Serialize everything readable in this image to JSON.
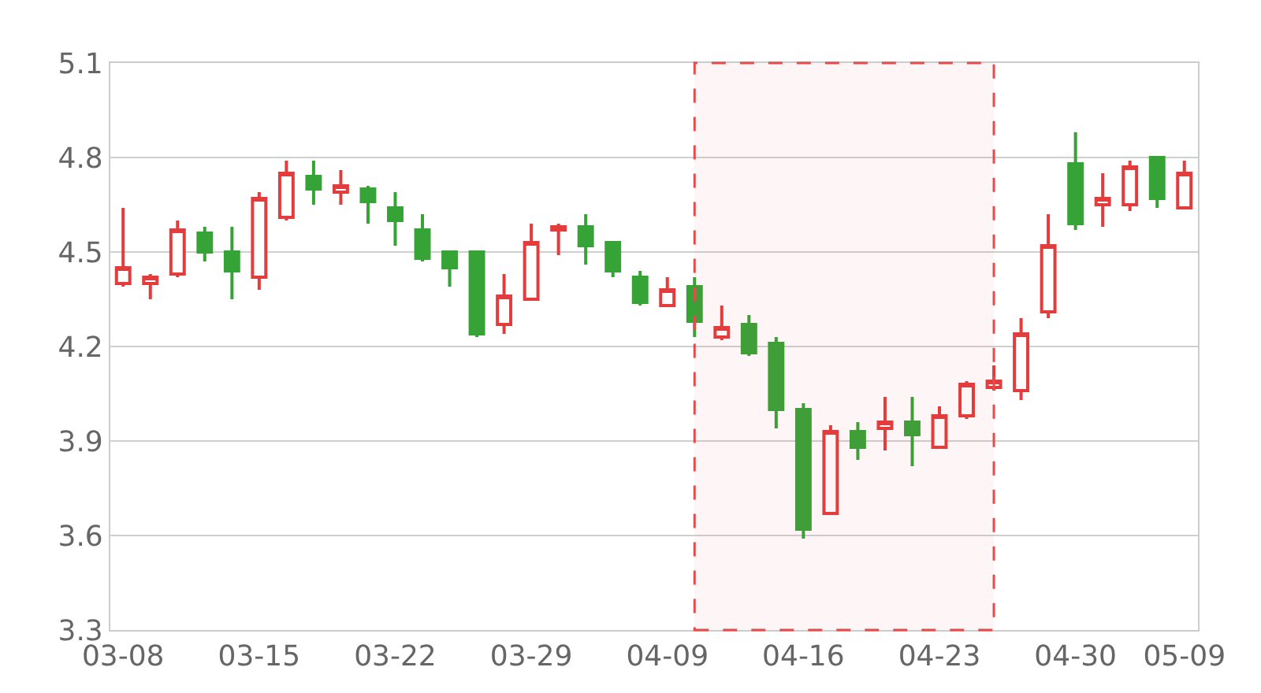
{
  "chart_data": {
    "type": "candlestick",
    "categories": [
      "03-08",
      null,
      null,
      null,
      null,
      "03-15",
      null,
      null,
      null,
      null,
      "03-22",
      null,
      null,
      null,
      null,
      "03-29",
      null,
      null,
      null,
      null,
      "04-09",
      null,
      null,
      null,
      null,
      "04-16",
      null,
      null,
      null,
      null,
      "04-23",
      null,
      null,
      null,
      null,
      "04-30",
      null,
      null,
      null,
      "05-09"
    ],
    "ohlc": [
      [
        4.4,
        4.64,
        4.39,
        4.45
      ],
      [
        4.4,
        4.43,
        4.35,
        4.42
      ],
      [
        4.43,
        4.6,
        4.42,
        4.57
      ],
      [
        4.56,
        4.58,
        4.47,
        4.5
      ],
      [
        4.5,
        4.58,
        4.35,
        4.44
      ],
      [
        4.42,
        4.69,
        4.38,
        4.67
      ],
      [
        4.61,
        4.79,
        4.6,
        4.75
      ],
      [
        4.74,
        4.79,
        4.65,
        4.7
      ],
      [
        4.69,
        4.76,
        4.65,
        4.71
      ],
      [
        4.7,
        4.71,
        4.59,
        4.66
      ],
      [
        4.64,
        4.69,
        4.52,
        4.6
      ],
      [
        4.57,
        4.62,
        4.47,
        4.48
      ],
      [
        4.5,
        4.5,
        4.39,
        4.45
      ],
      [
        4.5,
        4.5,
        4.23,
        4.24
      ],
      [
        4.27,
        4.43,
        4.24,
        4.36
      ],
      [
        4.35,
        4.59,
        4.35,
        4.53
      ],
      [
        4.57,
        4.59,
        4.49,
        4.58
      ],
      [
        4.58,
        4.62,
        4.46,
        4.52
      ],
      [
        4.53,
        4.53,
        4.42,
        4.44
      ],
      [
        4.42,
        4.44,
        4.33,
        4.34
      ],
      [
        4.33,
        4.42,
        4.33,
        4.38
      ],
      [
        4.39,
        4.42,
        4.23,
        4.28
      ],
      [
        4.23,
        4.33,
        4.22,
        4.26
      ],
      [
        4.27,
        4.3,
        4.17,
        4.18
      ],
      [
        4.21,
        4.23,
        3.94,
        4.0
      ],
      [
        4.0,
        4.02,
        3.59,
        3.62
      ],
      [
        3.67,
        3.95,
        3.67,
        3.93
      ],
      [
        3.93,
        3.96,
        3.84,
        3.88
      ],
      [
        3.94,
        4.04,
        3.87,
        3.96
      ],
      [
        3.96,
        4.04,
        3.82,
        3.92
      ],
      [
        3.88,
        4.01,
        3.88,
        3.98
      ],
      [
        3.98,
        4.09,
        3.97,
        4.08
      ],
      [
        4.07,
        4.14,
        4.06,
        4.09
      ],
      [
        4.06,
        4.29,
        4.03,
        4.24
      ],
      [
        4.31,
        4.62,
        4.29,
        4.52
      ],
      [
        4.78,
        4.88,
        4.57,
        4.59
      ],
      [
        4.65,
        4.75,
        4.58,
        4.67
      ],
      [
        4.65,
        4.79,
        4.63,
        4.77
      ],
      [
        4.8,
        4.8,
        4.64,
        4.67
      ],
      [
        4.64,
        4.79,
        4.64,
        4.75
      ]
    ],
    "colors": [
      "#e23c3c",
      "#e23c3c",
      "#e23c3c",
      "#36a336",
      "#36a336",
      "#e23c3c",
      "#e23c3c",
      "#36a336",
      "#e23c3c",
      "#36a336",
      "#36a336",
      "#36a336",
      "#36a336",
      "#36a336",
      "#e23c3c",
      "#e23c3c",
      "#e23c3c",
      "#36a336",
      "#36a336",
      "#36a336",
      "#e23c3c",
      "#36a336",
      "#e23c3c",
      "#36a336",
      "#36a336",
      "#36a336",
      "#e23c3c",
      "#36a336",
      "#e23c3c",
      "#36a336",
      "#e23c3c",
      "#e23c3c",
      "#e23c3c",
      "#e23c3c",
      "#e23c3c",
      "#36a336",
      "#e23c3c",
      "#e23c3c",
      "#36a336",
      "#e23c3c"
    ],
    "ylim": [
      3.3,
      5.1
    ],
    "yticks": [
      3.3,
      3.6,
      3.9,
      4.2,
      4.5,
      4.8,
      5.1
    ],
    "grid": "y"
  }
}
